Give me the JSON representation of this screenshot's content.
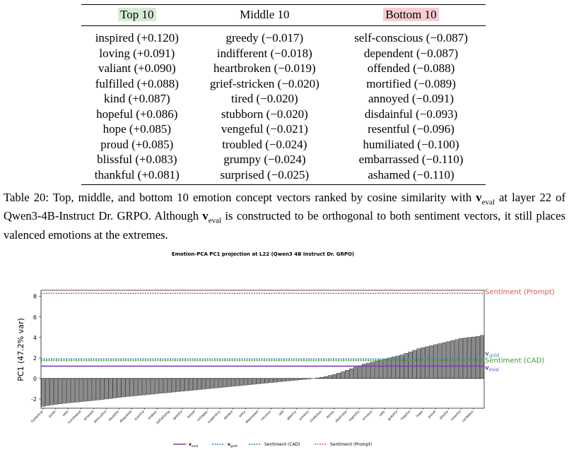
{
  "table": {
    "header": [
      "Top 10",
      "Middle 10",
      "Bottom 10"
    ],
    "rows": [
      [
        "inspired (+0.120)",
        "greedy (−0.017)",
        "self-conscious (−0.087)"
      ],
      [
        "loving (+0.091)",
        "indifferent (−0.018)",
        "dependent (−0.087)"
      ],
      [
        "valiant (+0.090)",
        "heartbroken (−0.019)",
        "offended (−0.088)"
      ],
      [
        "fulfilled (+0.088)",
        "grief-stricken (−0.020)",
        "mortified (−0.089)"
      ],
      [
        "kind (+0.087)",
        "tired (−0.020)",
        "annoyed (−0.091)"
      ],
      [
        "hopeful (+0.086)",
        "stubborn (−0.020)",
        "disdainful (−0.093)"
      ],
      [
        "hope (+0.085)",
        "vengeful (−0.021)",
        "resentful (−0.096)"
      ],
      [
        "proud (+0.085)",
        "troubled (−0.024)",
        "humiliated (−0.100)"
      ],
      [
        "blissful (+0.083)",
        "grumpy (−0.024)",
        "embarrassed (−0.110)"
      ],
      [
        "thankful (+0.081)",
        "surprised (−0.025)",
        "ashamed (−0.110)"
      ]
    ]
  },
  "caption": [
    {
      "text": "Table 20: Top, middle, and bottom 10 emotion concept vectors ranked by cosine similarity with "
    },
    {
      "bold": "v",
      "sub": "eval"
    },
    {
      "text": " at layer 22 of Qwen3-4B-Instruct Dr. GRPO. Although "
    },
    {
      "bold": "v",
      "sub": "eval"
    },
    {
      "text": " is constructed to be orthogonal to both sentiment vectors, it still places valenced emotions at the extremes."
    }
  ],
  "chart_data": {
    "type": "bar",
    "title": "Emotion-PCA PC1 projection at L22 (Qwen3 4B Instruct Dr. GRPO)",
    "ylabel": "PC1 (47.2% var)",
    "color": "#8c8c8c",
    "ylim": [
      -2.9,
      8.6
    ],
    "yticks": [
      -2,
      0,
      2,
      4,
      6,
      8
    ],
    "categories": [
      "hysterical",
      null,
      null,
      "jovial",
      null,
      null,
      "vital",
      null,
      null,
      "humiliated",
      null,
      null,
      "amazed",
      null,
      null,
      "distrustful",
      null,
      null,
      "doubtful",
      null,
      null,
      "disgusted",
      null,
      null,
      "scornful",
      null,
      null,
      "shaken",
      null,
      null,
      "self-pitying",
      null,
      null,
      "spiteful",
      null,
      null,
      "bored",
      null,
      null,
      "unhappy",
      null,
      null,
      "suspicious",
      null,
      null,
      "defiant",
      null,
      null,
      "sorry",
      null,
      null,
      "depressed",
      null,
      null,
      "nervous",
      null,
      null,
      "sad",
      null,
      null,
      "gloomy",
      null,
      null,
      "anxious",
      null,
      null,
      "vindictive",
      null,
      null,
      "lonely",
      null,
      null,
      "obstinate",
      null,
      null,
      "regretful",
      null,
      null,
      "envious",
      null,
      null,
      "safe",
      null,
      null,
      "grateful",
      null,
      null,
      "hopeful",
      null,
      null,
      "hope",
      null,
      null,
      "proud",
      null,
      null,
      "playful",
      null,
      null,
      "cheerful",
      null,
      null,
      "confident",
      null,
      null
    ],
    "values": [
      -2.72,
      -2.65,
      -2.58,
      -2.52,
      -2.47,
      -2.42,
      -2.38,
      -2.34,
      -2.3,
      -2.26,
      -2.22,
      -2.18,
      -2.14,
      -2.1,
      -2.05,
      -2.0,
      -1.95,
      -1.9,
      -1.85,
      -1.8,
      -1.76,
      -1.72,
      -1.68,
      -1.64,
      -1.6,
      -1.56,
      -1.52,
      -1.48,
      -1.44,
      -1.4,
      -1.36,
      -1.32,
      -1.28,
      -1.24,
      -1.2,
      -1.16,
      -1.12,
      -1.08,
      -1.04,
      -1.0,
      -0.96,
      -0.92,
      -0.88,
      -0.84,
      -0.8,
      -0.76,
      -0.72,
      -0.68,
      -0.64,
      -0.6,
      -0.56,
      -0.52,
      -0.48,
      -0.44,
      -0.4,
      -0.36,
      -0.32,
      -0.28,
      -0.24,
      -0.2,
      -0.16,
      -0.12,
      -0.08,
      -0.04,
      0.0,
      0.05,
      0.12,
      0.2,
      0.3,
      0.4,
      0.52,
      0.65,
      0.8,
      0.95,
      1.1,
      1.25,
      1.4,
      1.5,
      1.6,
      1.7,
      1.8,
      1.9,
      2.0,
      2.1,
      2.2,
      2.3,
      2.45,
      2.6,
      2.75,
      2.9,
      3.0,
      3.1,
      3.2,
      3.3,
      3.4,
      3.5,
      3.6,
      3.7,
      3.8,
      3.9,
      3.95,
      4.0,
      4.05,
      4.1,
      4.2
    ],
    "reference_lines": [
      {
        "name": "v",
        "sub": "eval",
        "value": 1.2,
        "color": "#7b3fb5",
        "dash": "solid"
      },
      {
        "name": "v",
        "sub": "gold",
        "value": 1.9,
        "color": "#4a7fb0",
        "dash": "dotted"
      },
      {
        "name": "Sentiment (CAD)",
        "value": 1.75,
        "color": "#3a9a3a",
        "dash": "dotted"
      },
      {
        "name": "Sentiment (Prompt)",
        "value": 8.3,
        "color": "#d9534f",
        "dash": "dotted"
      }
    ]
  }
}
